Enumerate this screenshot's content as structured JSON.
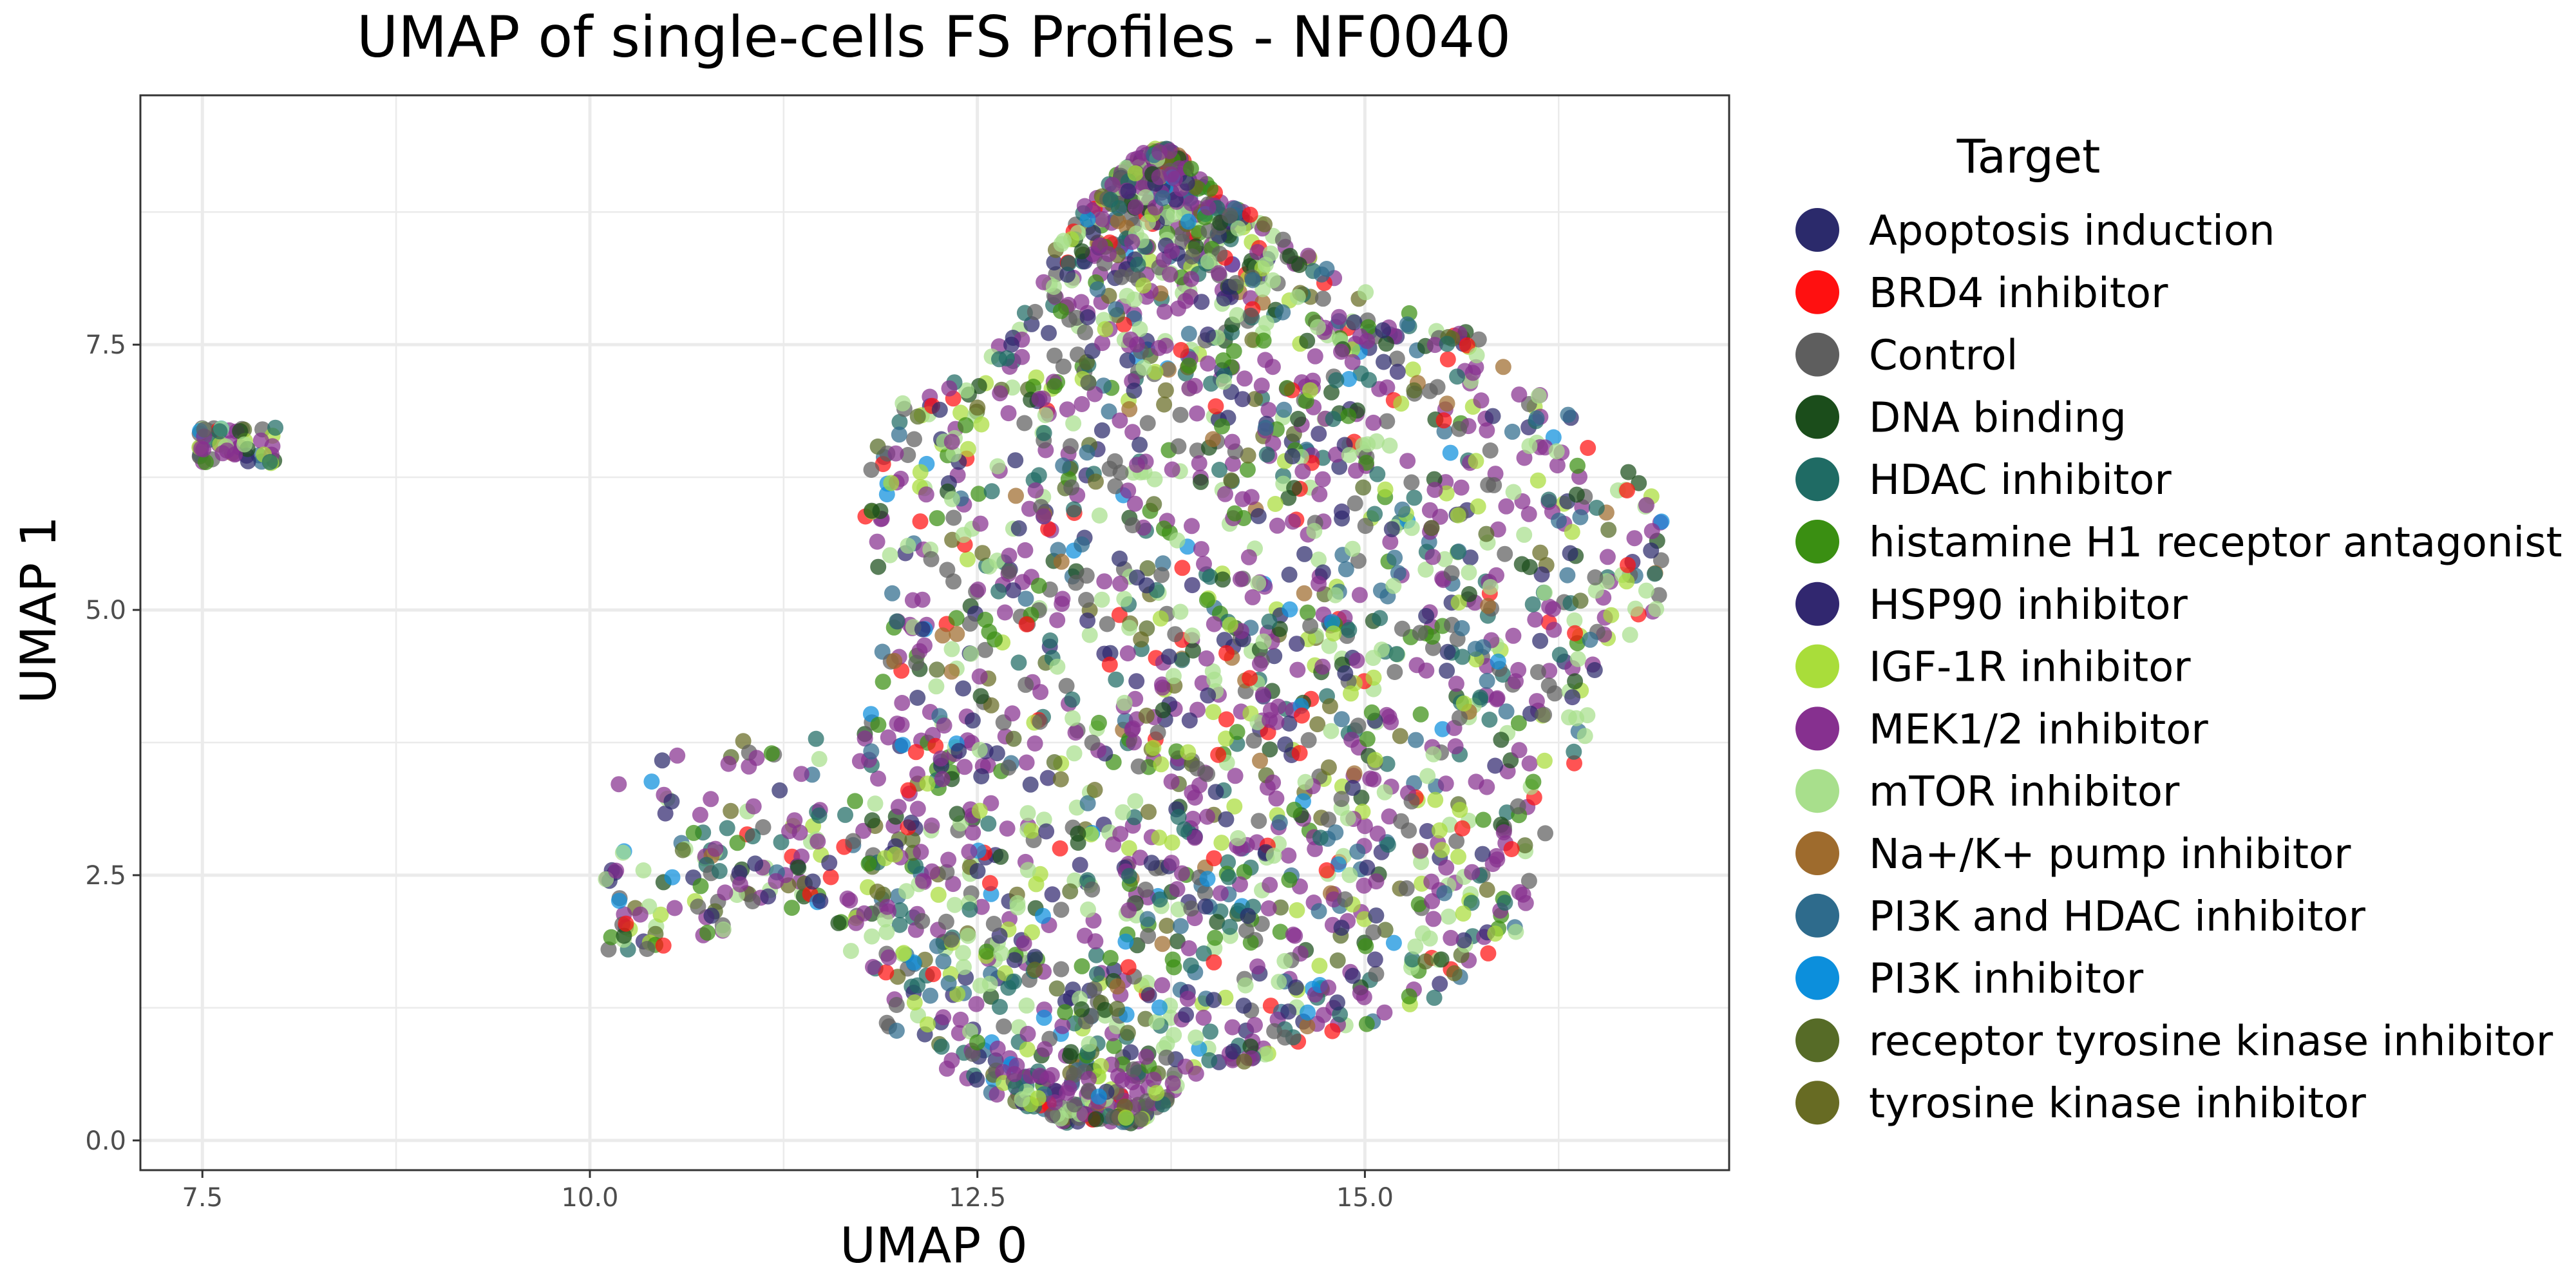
{
  "chart_data": {
    "type": "scatter",
    "title": "UMAP of single-cells FS Profiles - NF0040",
    "xlabel": "UMAP 0",
    "ylabel": "UMAP 1",
    "xlim": [
      7.1,
      17.35
    ],
    "ylim": [
      -0.28,
      9.85
    ],
    "xticks": [
      7.5,
      10.0,
      12.5,
      15.0
    ],
    "xtick_labels": [
      "7.5",
      "10.0",
      "12.5",
      "15.0"
    ],
    "yticks": [
      0.0,
      2.5,
      5.0,
      7.5
    ],
    "ytick_labels": [
      "0.0",
      "2.5",
      "5.0",
      "7.5"
    ],
    "grid": true,
    "legend": {
      "title": "Target",
      "placement": "right",
      "entries": [
        {
          "name": "Apoptosis induction",
          "color": "#2b2a6b"
        },
        {
          "name": "BRD4 inhibitor",
          "color": "#ff1010"
        },
        {
          "name": "Control",
          "color": "#5e5e5e"
        },
        {
          "name": "DNA binding",
          "color": "#1b4d1b"
        },
        {
          "name": "HDAC inhibitor",
          "color": "#1f6b64"
        },
        {
          "name": "histamine H1 receptor antagonist",
          "color": "#3a8f12"
        },
        {
          "name": "HSP90 inhibitor",
          "color": "#31276f"
        },
        {
          "name": "IGF-1R inhibitor",
          "color": "#a9dd3a"
        },
        {
          "name": "MEK1/2 inhibitor",
          "color": "#86308f"
        },
        {
          "name": "mTOR inhibitor",
          "color": "#a8df8c"
        },
        {
          "name": "Na+/K+ pump inhibitor",
          "color": "#9e6b2d"
        },
        {
          "name": "PI3K and HDAC inhibitor",
          "color": "#2e6b8c"
        },
        {
          "name": "PI3K inhibitor",
          "color": "#0c8fdc"
        },
        {
          "name": "receptor tyrosine kinase inhibitor",
          "color": "#566b27"
        },
        {
          "name": "tyrosine kinase inhibitor",
          "color": "#676b23"
        }
      ]
    },
    "cluster_regions": [
      {
        "note_points": 60,
        "x_range": [
          7.48,
          7.98
        ],
        "y_range": [
          6.38,
          6.72
        ]
      },
      {
        "note_points": 140,
        "x_range": [
          10.1,
          11.5
        ],
        "y_range": [
          1.8,
          4.15
        ]
      },
      {
        "note_points": 2600,
        "x_range": [
          11.4,
          16.95
        ],
        "y_range": [
          0.15,
          9.35
        ]
      }
    ]
  }
}
